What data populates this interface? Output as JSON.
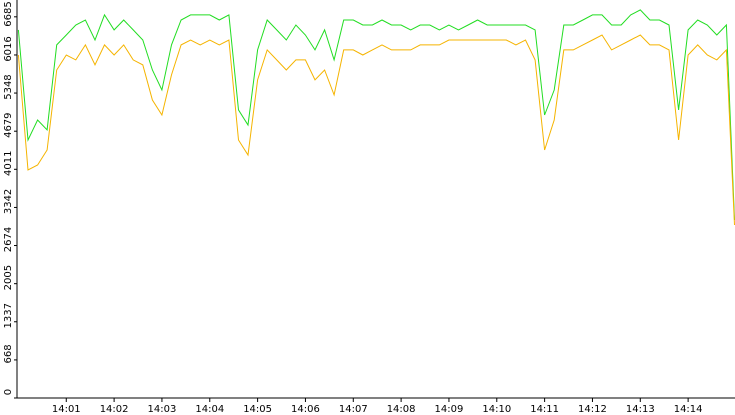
{
  "chart_data": {
    "type": "line",
    "x": [
      840.0,
      840.2,
      840.4,
      840.6,
      840.8,
      841.0,
      841.2,
      841.4,
      841.6,
      841.8,
      842.0,
      842.2,
      842.4,
      842.6,
      842.8,
      843.0,
      843.2,
      843.4,
      843.6,
      843.8,
      844.0,
      844.2,
      844.4,
      844.6,
      844.8,
      845.0,
      845.2,
      845.4,
      845.6,
      845.8,
      846.0,
      846.2,
      846.4,
      846.6,
      846.8,
      847.0,
      847.2,
      847.4,
      847.6,
      847.8,
      848.0,
      848.2,
      848.4,
      848.6,
      848.8,
      849.0,
      849.2,
      849.4,
      849.6,
      849.8,
      850.0,
      850.2,
      850.4,
      850.6,
      850.8,
      851.0,
      851.2,
      851.4,
      851.6,
      851.8,
      852.0,
      852.2,
      852.4,
      852.6,
      852.8,
      853.0,
      853.2,
      853.4,
      853.6,
      853.8,
      854.0,
      854.2,
      854.4,
      854.6,
      854.8,
      854.97
    ],
    "series": [
      {
        "color": "#22dd22",
        "values": [
          6455,
          4525,
          4876,
          4701,
          6192,
          6367,
          6542,
          6630,
          6279,
          6718,
          6455,
          6630,
          6455,
          6279,
          5753,
          5402,
          6192,
          6630,
          6718,
          6718,
          6718,
          6630,
          6718,
          5052,
          4788,
          6104,
          6630,
          6455,
          6279,
          6542,
          6367,
          6104,
          6455,
          5929,
          6630,
          6630,
          6542,
          6542,
          6630,
          6542,
          6542,
          6455,
          6542,
          6542,
          6455,
          6542,
          6455,
          6542,
          6630,
          6542,
          6542,
          6542,
          6542,
          6542,
          6455,
          4964,
          5402,
          6542,
          6542,
          6630,
          6718,
          6718,
          6542,
          6542,
          6718,
          6806,
          6630,
          6630,
          6542,
          5052,
          6455,
          6630,
          6542,
          6367,
          6542,
          3122
        ]
      },
      {
        "color": "#f5b400",
        "values": [
          6016,
          3999,
          4087,
          4350,
          5753,
          6016,
          5929,
          6192,
          5841,
          6192,
          6016,
          6192,
          5929,
          5841,
          5227,
          4964,
          5666,
          6192,
          6279,
          6192,
          6279,
          6192,
          6279,
          4525,
          4262,
          5578,
          6104,
          5929,
          5753,
          5929,
          5929,
          5578,
          5753,
          5315,
          6104,
          6104,
          6016,
          6104,
          6192,
          6104,
          6104,
          6104,
          6192,
          6192,
          6192,
          6279,
          6279,
          6279,
          6279,
          6279,
          6279,
          6279,
          6192,
          6279,
          5929,
          4350,
          4876,
          6104,
          6104,
          6192,
          6279,
          6367,
          6104,
          6192,
          6279,
          6367,
          6192,
          6192,
          6104,
          4525,
          6016,
          6192,
          6016,
          5929,
          6104,
          3034
        ]
      }
    ],
    "xlim": [
      839.97,
      854.98
    ],
    "xticks": [
      {
        "value": 841,
        "label": "14:01"
      },
      {
        "value": 842,
        "label": "14:02"
      },
      {
        "value": 843,
        "label": "14:03"
      },
      {
        "value": 844,
        "label": "14:04"
      },
      {
        "value": 845,
        "label": "14:05"
      },
      {
        "value": 846,
        "label": "14:06"
      },
      {
        "value": 847,
        "label": "14:07"
      },
      {
        "value": 848,
        "label": "14:08"
      },
      {
        "value": 849,
        "label": "14:09"
      },
      {
        "value": 850,
        "label": "14:10"
      },
      {
        "value": 851,
        "label": "14:11"
      },
      {
        "value": 852,
        "label": "14:12"
      },
      {
        "value": 853,
        "label": "14:13"
      },
      {
        "value": 854,
        "label": "14:14"
      }
    ],
    "ylim": [
      0,
      6980
    ],
    "yticks": [
      0,
      668,
      1337,
      2005,
      2674,
      3342,
      4011,
      4679,
      5348,
      6016,
      6685
    ],
    "grid": false
  }
}
